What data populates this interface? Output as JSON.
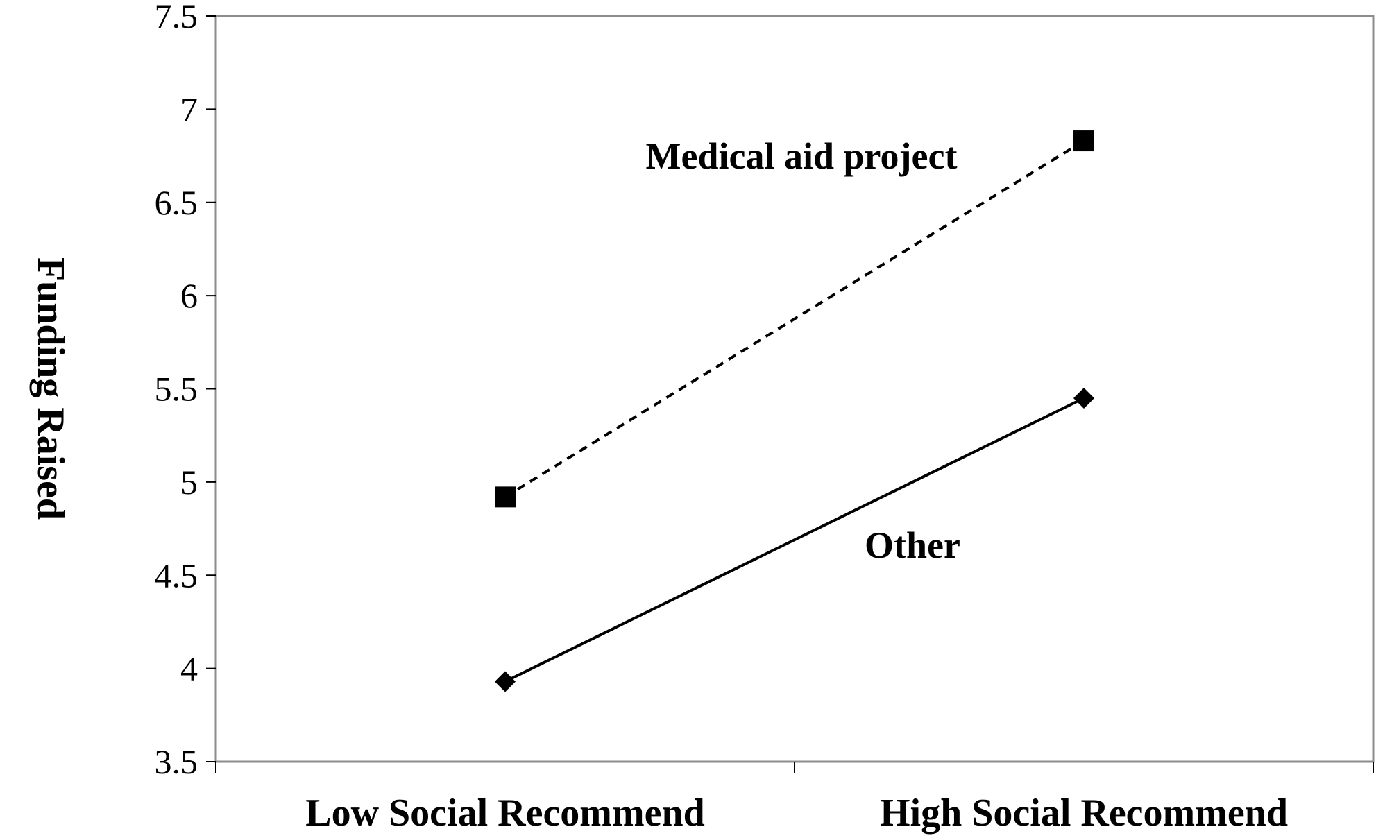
{
  "chart_data": {
    "type": "line",
    "title": "",
    "xlabel": "",
    "ylabel": "Funding Raised",
    "categories": [
      "Low Social Recommend",
      "High Social Recommend"
    ],
    "ylim": [
      3.5,
      7.5
    ],
    "yticks": [
      "3.5",
      "4",
      "4.5",
      "5",
      "5.5",
      "6",
      "6.5",
      "7",
      "7.5"
    ],
    "grid": false,
    "series": [
      {
        "name": "Medical aid project",
        "values": [
          4.92,
          6.83
        ],
        "marker": "square",
        "line_style": "dashed",
        "color": "#000000"
      },
      {
        "name": "Other",
        "values": [
          3.93,
          5.45
        ],
        "marker": "diamond",
        "line_style": "solid",
        "color": "#000000"
      }
    ]
  }
}
